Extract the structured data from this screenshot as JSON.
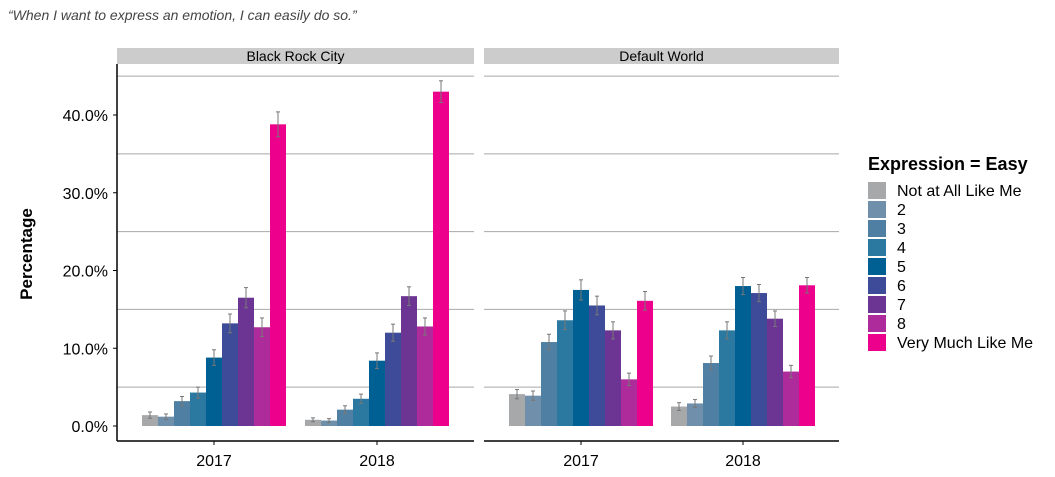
{
  "subtitle": "“When I want to express an emotion, I can easily do so.”",
  "chart_data": {
    "type": "bar",
    "title": "",
    "subtitle": "“When I want to express an emotion, I can easily do so.”",
    "ylabel": "Percentage",
    "xlabel": "",
    "ylim": [
      0,
      47
    ],
    "yticks": [
      0,
      10,
      20,
      30,
      40
    ],
    "ytick_labels": [
      "0.0%",
      "10.0%",
      "20.0%",
      "30.0%",
      "40.0%"
    ],
    "grid": "horizontal",
    "legend": {
      "title": "Expression = Easy",
      "placement": "right"
    },
    "categories": [
      "2017",
      "2018"
    ],
    "levels": [
      "Not at All Like Me",
      "2",
      "3",
      "4",
      "5",
      "6",
      "7",
      "8",
      "Very Much Like Me"
    ],
    "colors": [
      "#a7a8aa",
      "#6f8faa",
      "#4f80a3",
      "#2b78a0",
      "#005f93",
      "#3e4b98",
      "#6c3594",
      "#ae2b9b",
      "#ec008c"
    ],
    "panels": [
      {
        "name": "Black Rock City",
        "groups": [
          {
            "category": "2017",
            "values": [
              1.4,
              1.2,
              3.2,
              4.3,
              8.8,
              13.2,
              16.5,
              12.7,
              38.8
            ],
            "errors": [
              0.4,
              0.35,
              0.6,
              0.7,
              1.0,
              1.2,
              1.3,
              1.2,
              1.6
            ]
          },
          {
            "category": "2018",
            "values": [
              0.8,
              0.7,
              2.1,
              3.5,
              8.4,
              12.0,
              16.7,
              12.8,
              43.0
            ],
            "errors": [
              0.25,
              0.25,
              0.5,
              0.6,
              1.0,
              1.1,
              1.2,
              1.1,
              1.4
            ]
          }
        ]
      },
      {
        "name": "Default World",
        "groups": [
          {
            "category": "2017",
            "values": [
              4.1,
              3.9,
              10.8,
              13.6,
              17.5,
              15.5,
              12.3,
              6.0,
              16.1
            ],
            "errors": [
              0.6,
              0.6,
              1.0,
              1.2,
              1.3,
              1.2,
              1.1,
              0.8,
              1.2
            ]
          },
          {
            "category": "2018",
            "values": [
              2.5,
              2.9,
              8.1,
              12.3,
              18.0,
              17.1,
              13.8,
              7.0,
              18.1
            ],
            "errors": [
              0.5,
              0.5,
              0.9,
              1.1,
              1.1,
              1.1,
              1.0,
              0.8,
              1.0
            ]
          }
        ]
      }
    ]
  }
}
